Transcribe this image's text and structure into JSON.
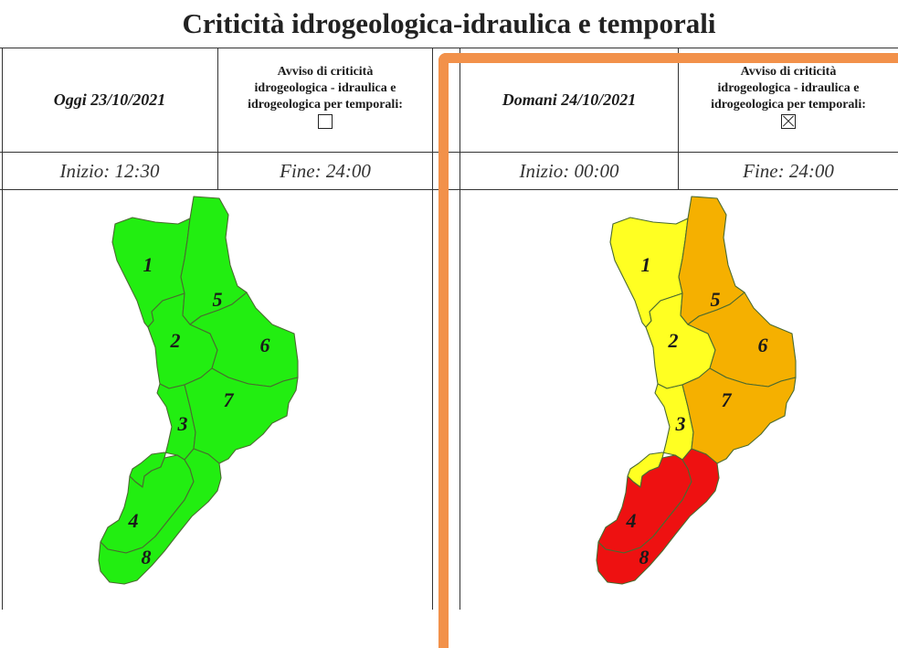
{
  "title": "Criticità idrogeologica-idraulica e temporali",
  "panels": [
    {
      "date_label": "Oggi 23/10/2021",
      "notice_lines": [
        "Avviso di criticità",
        "idrogeologica - idraulica e",
        "idrogeologica per temporali:"
      ],
      "notice_checked": false,
      "start_label": "Inizio: 12:30",
      "end_label": "Fine: 24:00",
      "zones": [
        {
          "id": "1",
          "level": "green",
          "color": "#22ee11"
        },
        {
          "id": "2",
          "level": "green",
          "color": "#22ee11"
        },
        {
          "id": "3",
          "level": "green",
          "color": "#22ee11"
        },
        {
          "id": "4",
          "level": "green",
          "color": "#22ee11"
        },
        {
          "id": "5",
          "level": "green",
          "color": "#22ee11"
        },
        {
          "id": "6",
          "level": "green",
          "color": "#22ee11"
        },
        {
          "id": "7",
          "level": "green",
          "color": "#22ee11"
        },
        {
          "id": "8",
          "level": "green",
          "color": "#22ee11"
        }
      ]
    },
    {
      "date_label": "Domani 24/10/2021",
      "notice_lines": [
        "Avviso di criticità",
        "idrogeologica - idraulica e",
        "idrogeologica per temporali:"
      ],
      "notice_checked": true,
      "start_label": "Inizio: 00:00",
      "end_label": "Fine: 24:00",
      "zones": [
        {
          "id": "1",
          "level": "yellow",
          "color": "#ffff22"
        },
        {
          "id": "2",
          "level": "yellow",
          "color": "#ffff22"
        },
        {
          "id": "3",
          "level": "yellow",
          "color": "#ffff22"
        },
        {
          "id": "4",
          "level": "red",
          "color": "#ee1111"
        },
        {
          "id": "5",
          "level": "orange",
          "color": "#f5b000"
        },
        {
          "id": "6",
          "level": "orange",
          "color": "#f5b000"
        },
        {
          "id": "7",
          "level": "orange",
          "color": "#f5b000"
        },
        {
          "id": "8",
          "level": "red",
          "color": "#ee1111"
        }
      ]
    }
  ]
}
